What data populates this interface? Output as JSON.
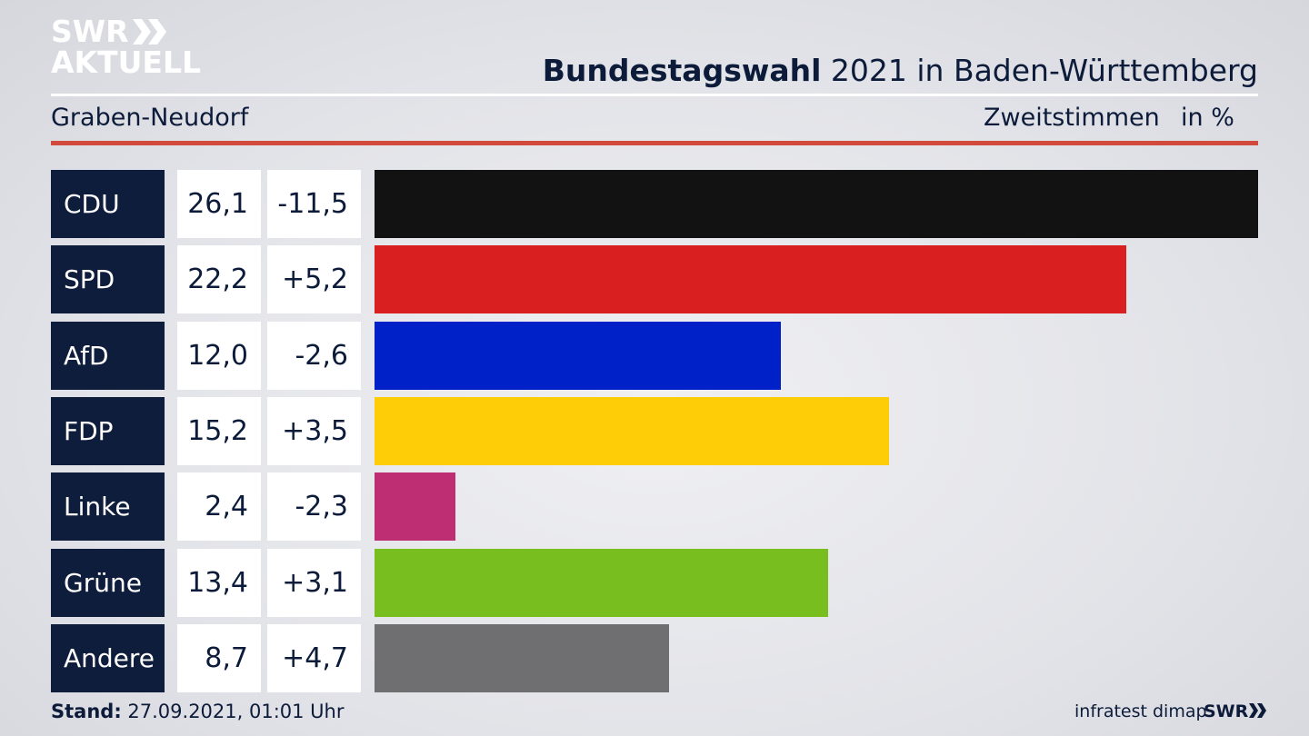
{
  "header": {
    "logo_line1": "SWR",
    "logo_line2": "AKTUELL",
    "title_bold": "Bundestagswahl",
    "title_rest": " 2021 in Baden-Württemberg"
  },
  "subheader": {
    "district": "Graben-Neudorf",
    "vote_type": "Zweitstimmen",
    "unit": "in %"
  },
  "colors": {
    "CDU": "#121212",
    "SPD": "#d91f1f",
    "AfD": "#0021c8",
    "FDP": "#ffcc08",
    "Linke": "#be2e72",
    "Grüne": "#78be1e",
    "Andere": "#6f6f72",
    "accent_red": "#d24a3c",
    "navy": "#0f1d3d"
  },
  "chart_data": {
    "type": "bar",
    "orientation": "horizontal",
    "title": "Bundestagswahl 2021 in Baden-Württemberg",
    "subtitle": "Graben-Neudorf",
    "categories": [
      "CDU",
      "SPD",
      "AfD",
      "FDP",
      "Linke",
      "Grüne",
      "Andere"
    ],
    "values": [
      26.1,
      22.2,
      12.0,
      15.2,
      2.4,
      13.4,
      8.7
    ],
    "value_labels": [
      "26,1",
      "22,2",
      "12,0",
      "15,2",
      "2,4",
      "13,4",
      "8,7"
    ],
    "diff_labels": [
      "-11,5",
      "+5,2",
      "-2,6",
      "+3,5",
      "-2,3",
      "+3,1",
      "+4,7"
    ],
    "diffs": [
      -11.5,
      5.2,
      -2.6,
      3.5,
      -2.3,
      3.1,
      4.7
    ],
    "unit": "in %",
    "grid": false
  },
  "footer": {
    "stand_label": "Stand:",
    "stand_value": " 27.09.2021, 01:01 Uhr",
    "source": "infratest dimap",
    "broadcaster": "SWR"
  }
}
